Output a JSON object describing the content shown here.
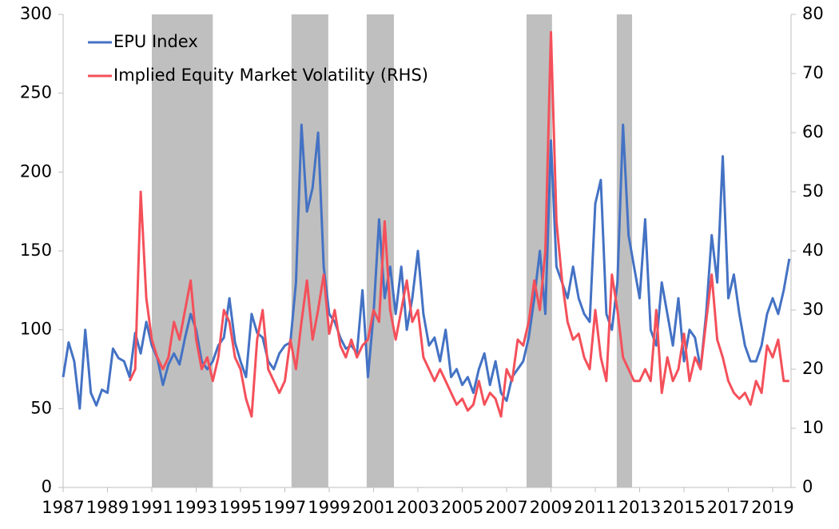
{
  "chart_data": {
    "type": "line",
    "x": [
      1987,
      1987.25,
      1987.5,
      1987.75,
      1988,
      1988.25,
      1988.5,
      1988.75,
      1989,
      1989.25,
      1989.5,
      1989.75,
      1990,
      1990.25,
      1990.5,
      1990.75,
      1991,
      1991.25,
      1991.5,
      1991.75,
      1992,
      1992.25,
      1992.5,
      1992.75,
      1993,
      1993.25,
      1993.5,
      1993.75,
      1994,
      1994.25,
      1994.5,
      1994.75,
      1995,
      1995.25,
      1995.5,
      1995.75,
      1996,
      1996.25,
      1996.5,
      1996.75,
      1997,
      1997.25,
      1997.5,
      1997.75,
      1998,
      1998.25,
      1998.5,
      1998.75,
      1999,
      1999.25,
      1999.5,
      1999.75,
      2000,
      2000.25,
      2000.5,
      2000.75,
      2001,
      2001.25,
      2001.5,
      2001.75,
      2002,
      2002.25,
      2002.5,
      2002.75,
      2003,
      2003.25,
      2003.5,
      2003.75,
      2004,
      2004.25,
      2004.5,
      2004.75,
      2005,
      2005.25,
      2005.5,
      2005.75,
      2006,
      2006.25,
      2006.5,
      2006.75,
      2007,
      2007.25,
      2007.5,
      2007.75,
      2008,
      2008.25,
      2008.5,
      2008.75,
      2009,
      2009.25,
      2009.5,
      2009.75,
      2010,
      2010.25,
      2010.5,
      2010.75,
      2011,
      2011.25,
      2011.5,
      2011.75,
      2012,
      2012.25,
      2012.5,
      2012.75,
      2013,
      2013.25,
      2013.5,
      2013.75,
      2014,
      2014.25,
      2014.5,
      2014.75,
      2015,
      2015.25,
      2015.5,
      2015.75,
      2016,
      2016.25,
      2016.5,
      2016.75,
      2017,
      2017.25,
      2017.5,
      2017.75,
      2018,
      2018.25,
      2018.5,
      2018.75,
      2019,
      2019.25,
      2019.5,
      2019.75
    ],
    "series": [
      {
        "name": "EPU Index",
        "color": "#4472c4",
        "axis": "y",
        "values": [
          70,
          92,
          80,
          50,
          100,
          60,
          52,
          62,
          60,
          88,
          82,
          80,
          70,
          98,
          85,
          105,
          90,
          82,
          65,
          78,
          85,
          78,
          95,
          110,
          100,
          80,
          75,
          80,
          90,
          95,
          120,
          92,
          80,
          70,
          110,
          98,
          95,
          80,
          75,
          85,
          90,
          92,
          130,
          230,
          175,
          190,
          225,
          140,
          110,
          105,
          95,
          88,
          90,
          85,
          125,
          70,
          110,
          170,
          120,
          140,
          110,
          140,
          100,
          120,
          150,
          110,
          90,
          95,
          80,
          100,
          70,
          75,
          65,
          70,
          60,
          75,
          85,
          65,
          80,
          60,
          55,
          70,
          75,
          80,
          95,
          120,
          150,
          110,
          220,
          140,
          130,
          120,
          140,
          120,
          110,
          105,
          180,
          195,
          110,
          100,
          130,
          230,
          160,
          140,
          120,
          170,
          100,
          90,
          130,
          110,
          90,
          120,
          80,
          100,
          95,
          75,
          110,
          160,
          130,
          210,
          120,
          135,
          110,
          90,
          80,
          80,
          90,
          110,
          120,
          110,
          125,
          145
        ]
      },
      {
        "name": "Implied Equity Market Volatility (RHS)",
        "color": "#f4505a",
        "axis": "y2",
        "values": [
          null,
          null,
          null,
          null,
          null,
          null,
          null,
          null,
          null,
          null,
          null,
          null,
          18,
          20,
          50,
          32,
          25,
          22,
          20,
          22,
          28,
          25,
          30,
          35,
          25,
          20,
          22,
          18,
          22,
          30,
          28,
          22,
          20,
          15,
          12,
          25,
          30,
          20,
          18,
          16,
          18,
          25,
          20,
          28,
          35,
          25,
          30,
          36,
          26,
          30,
          24,
          22,
          25,
          22,
          24,
          25,
          30,
          28,
          45,
          30,
          25,
          30,
          35,
          28,
          30,
          22,
          20,
          18,
          20,
          18,
          16,
          14,
          15,
          13,
          14,
          18,
          14,
          16,
          15,
          12,
          20,
          18,
          25,
          24,
          28,
          35,
          30,
          40,
          77,
          45,
          35,
          28,
          25,
          26,
          22,
          20,
          30,
          22,
          18,
          36,
          30,
          22,
          20,
          18,
          18,
          20,
          18,
          30,
          16,
          22,
          18,
          20,
          26,
          18,
          22,
          20,
          28,
          36,
          25,
          22,
          18,
          16,
          15,
          16,
          14,
          18,
          16,
          24,
          22,
          25,
          18,
          18
        ]
      }
    ],
    "xlim": [
      1987,
      2019.83
    ],
    "xticks": [
      1987,
      1989,
      1991,
      1993,
      1995,
      1997,
      1999,
      2001,
      2003,
      2005,
      2007,
      2009,
      2011,
      2013,
      2015,
      2017,
      2019
    ],
    "ylim": [
      0,
      300
    ],
    "yticks": [
      0,
      50,
      100,
      150,
      200,
      250,
      300
    ],
    "y2lim": [
      0,
      80
    ],
    "y2ticks": [
      0,
      10,
      20,
      30,
      40,
      50,
      60,
      70,
      80
    ],
    "shaded_regions": [
      [
        1991.0,
        1993.75
      ],
      [
        1997.3,
        1998.96
      ],
      [
        2000.69,
        2001.92
      ],
      [
        2007.9,
        2009.05
      ],
      [
        2011.97,
        2012.66
      ]
    ],
    "shade_color": "#bfbfbf",
    "grid": false,
    "legend": "upper left"
  }
}
